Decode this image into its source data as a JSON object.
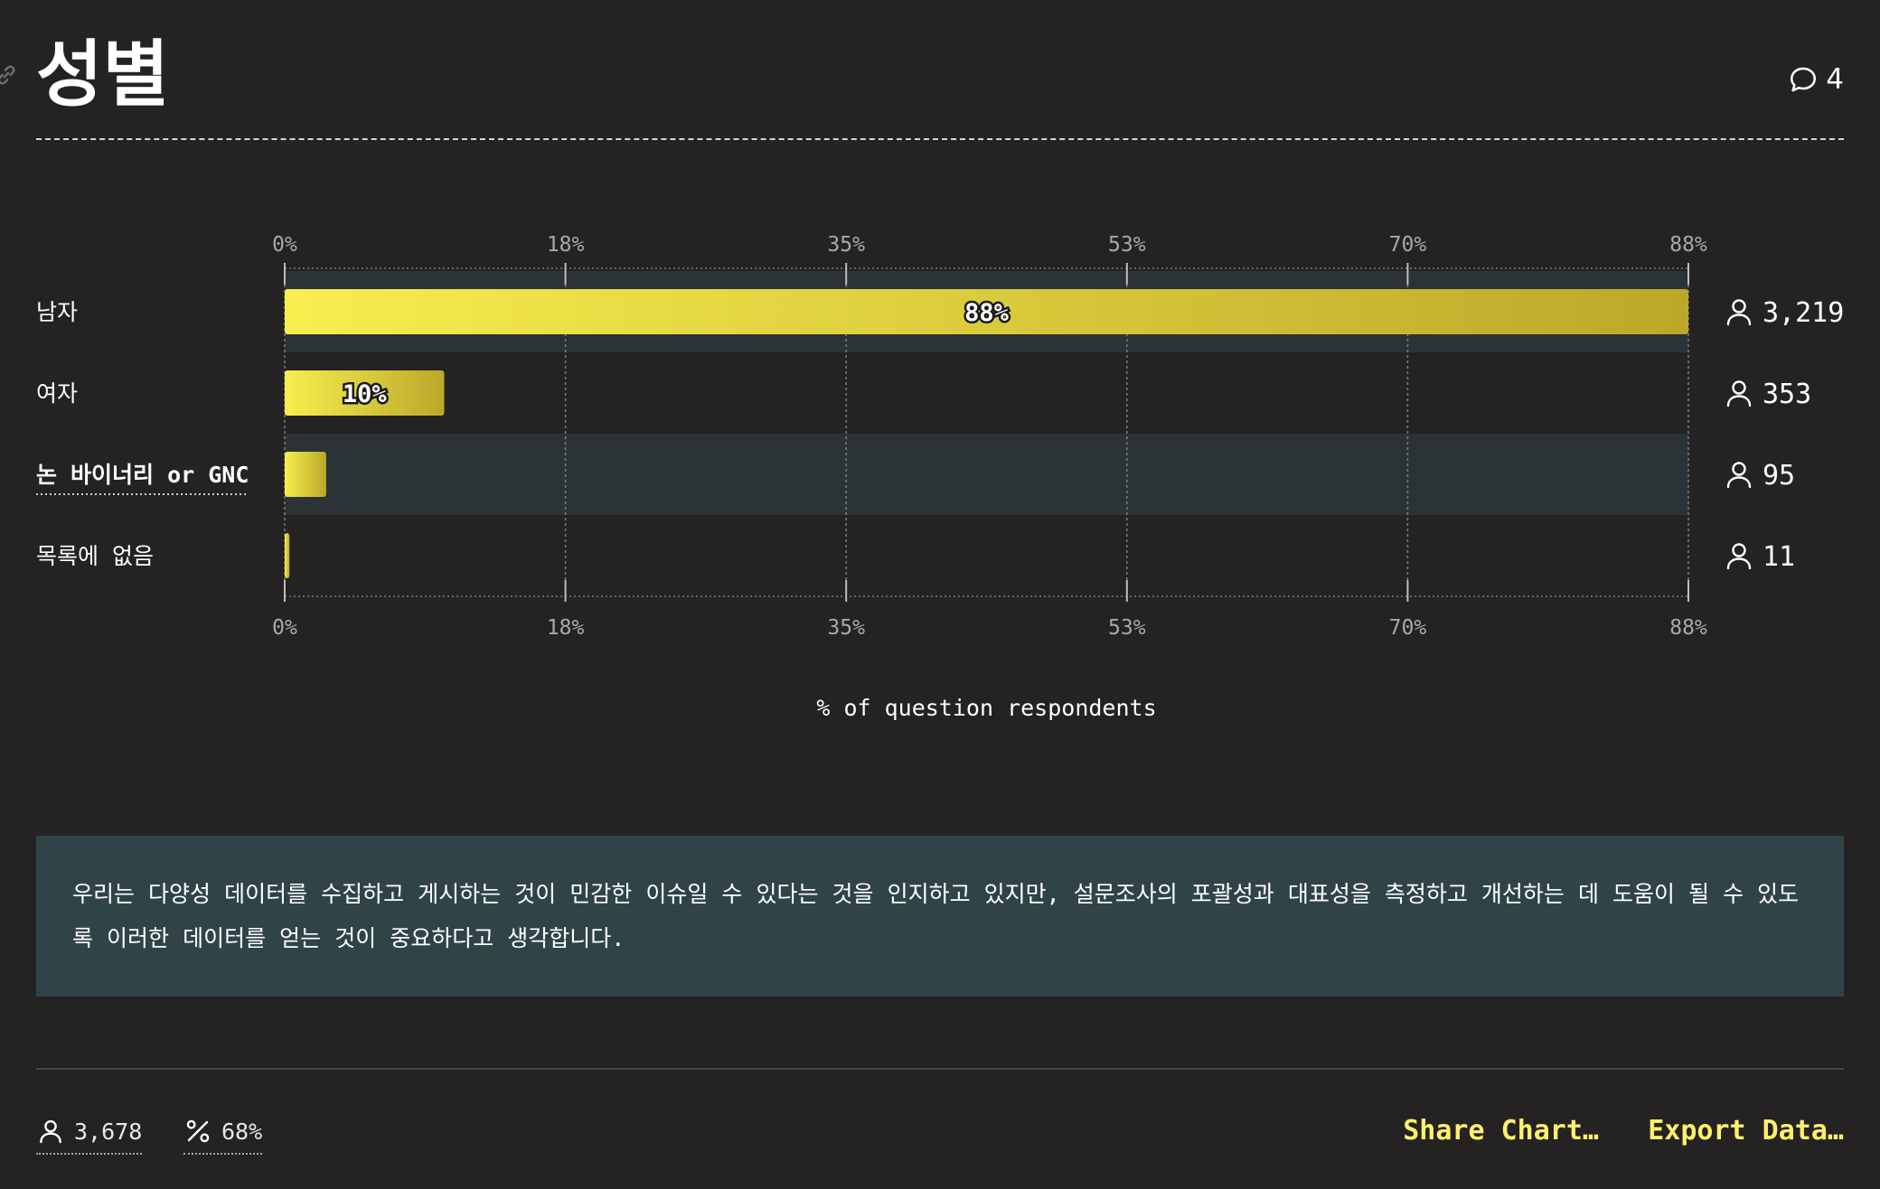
{
  "page": {
    "title": "성별",
    "comment_count": "4"
  },
  "chart_data": {
    "type": "bar",
    "orientation": "horizontal",
    "categories": [
      "남자",
      "여자",
      "논 바이너리 or GNC",
      "목록에 없음"
    ],
    "values": [
      88,
      10,
      2.6,
      0.3
    ],
    "value_labels": [
      "88%",
      "10%",
      "",
      ""
    ],
    "respondent_counts": [
      "3,219",
      "353",
      "95",
      "11"
    ],
    "x_ticks": [
      "0%",
      "18%",
      "35%",
      "53%",
      "70%",
      "88%"
    ],
    "xlim": [
      0,
      88
    ],
    "xlabel": "% of question respondents",
    "ylabel": "",
    "title": "",
    "grid": true,
    "legend": "none",
    "highlighted_category_index": 2,
    "colors": {
      "bar_start": "#f8ee4e",
      "bar_end": "#bba82a",
      "first_row_band": "#2c3336",
      "highlight_band": "#2c3336",
      "grid": "#7c7c7c"
    }
  },
  "note": {
    "text": "우리는 다양성 데이터를 수집하고 게시하는 것이 민감한 이슈일 수 있다는 것을 인지하고 있지만, 설문조사의 포괄성과 대표성을 측정하고 개선하는 데 도움이 될 수 있도록 이러한 데이터를 얻는 것이 중요하다고 생각합니다."
  },
  "footer": {
    "respondents": "3,678",
    "percentage": "68%",
    "share_label": "Share Chart…",
    "export_label": "Export Data…",
    "accent_color": "#fff06b"
  }
}
